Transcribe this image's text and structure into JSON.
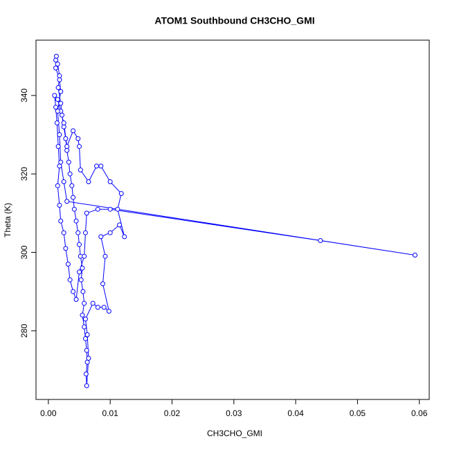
{
  "chart_data": {
    "type": "scatter",
    "lines": true,
    "title": "ATOM1 Southbound CH3CHO_GMI",
    "x_label": "CH3CHO_GMI",
    "y_label": "Theta (K)",
    "xlim": [
      -0.002,
      0.0616
    ],
    "ylim": [
      262.5,
      354.1
    ],
    "xticks": [
      {
        "value": 0,
        "label": "0.00"
      },
      {
        "value": 0.01,
        "label": "0.01"
      },
      {
        "value": 0.02,
        "label": "0.02"
      },
      {
        "value": 0.03,
        "label": "0.03"
      },
      {
        "value": 0.04,
        "label": "0.04"
      },
      {
        "value": 0.05,
        "label": "0.05"
      },
      {
        "value": 0.06,
        "label": "0.06"
      }
    ],
    "yticks": [
      280,
      300,
      320,
      340
    ],
    "grid": false,
    "series": [
      {
        "color": "#0000ff",
        "x": [
          0.0012,
          0.0013,
          0.0015,
          0.0018,
          0.0016,
          0.002,
          0.0022,
          0.0025,
          0.0028,
          0.003,
          0.0033,
          0.0035,
          0.0038,
          0.004,
          0.0042,
          0.0045,
          0.0048,
          0.005,
          0.0052,
          0.0055,
          0.0053,
          0.0056,
          0.0058,
          0.0055,
          0.0058,
          0.006,
          0.0062,
          0.0063,
          0.0061,
          0.0062,
          0.0065,
          0.0063,
          0.006,
          0.0072,
          0.008,
          0.009,
          0.0098,
          0.0088,
          0.0092,
          0.0085,
          0.01,
          0.0115,
          0.0123,
          0.0112,
          0.0118,
          0.01,
          0.0085,
          0.0078,
          0.0065,
          0.0052,
          0.005,
          0.0048,
          0.004,
          0.003,
          0.0025,
          0.002,
          0.0015,
          0.001,
          0.0012,
          0.0014,
          0.0016,
          0.0018,
          0.0015,
          0.0018,
          0.002,
          0.0025,
          0.0028,
          0.0032,
          0.0035,
          0.004,
          0.0045,
          0.005,
          0.0058,
          0.006,
          0.0062,
          0.008,
          0.01,
          0.044,
          0.0593,
          0.003,
          0.0025,
          0.002,
          0.0018,
          0.0015,
          0.002,
          0.0018,
          0.0012
        ],
        "y": [
          349,
          350,
          348,
          345,
          342,
          338,
          335,
          332,
          329,
          326,
          323,
          320,
          317,
          314,
          311,
          308,
          305,
          302,
          299,
          296,
          293,
          290,
          287,
          284,
          281,
          278,
          275,
          272,
          269,
          266,
          273,
          279,
          283,
          287,
          286,
          286,
          285,
          292,
          299,
          304,
          305,
          307,
          304,
          311,
          315,
          318,
          322,
          322,
          318,
          321,
          327,
          329,
          331,
          327,
          333,
          336,
          339,
          340,
          337,
          333,
          327,
          322,
          317,
          312,
          308,
          305,
          301,
          297,
          293,
          290,
          288,
          295,
          299,
          305,
          310,
          311,
          311,
          303,
          299.3,
          313,
          318,
          323,
          330,
          336,
          341,
          344,
          347
        ]
      }
    ]
  }
}
